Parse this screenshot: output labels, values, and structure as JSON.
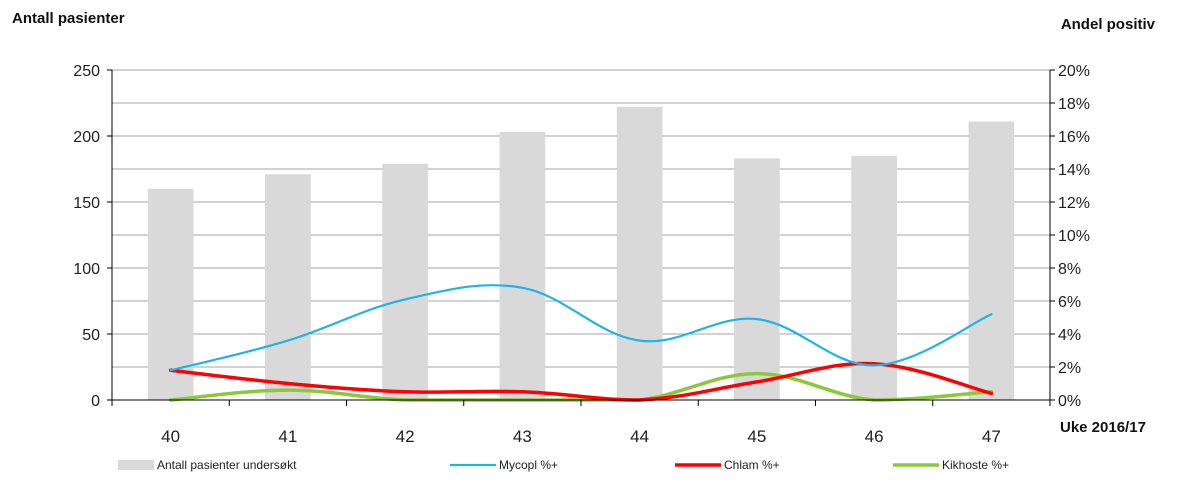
{
  "chart_data": {
    "type": "bar",
    "left_axis_title": "Antall pasienter",
    "right_axis_title": "Andel positiv",
    "x_axis_title": "Uke 2016/17",
    "categories": [
      "40",
      "41",
      "42",
      "43",
      "44",
      "45",
      "46",
      "47"
    ],
    "left_ylim": [
      0,
      250
    ],
    "left_ticks": [
      "0",
      "50",
      "100",
      "150",
      "200",
      "250"
    ],
    "right_ylim": [
      0,
      20
    ],
    "right_ticks": [
      "0%",
      "2%",
      "4%",
      "6%",
      "8%",
      "10%",
      "12%",
      "14%",
      "16%",
      "18%",
      "20%"
    ],
    "grid": true,
    "legend_position": "bottom",
    "bars": {
      "name": "Antall pasienter undersøkt",
      "color": "#d9d9d9",
      "values": [
        160,
        171,
        179,
        203,
        222,
        183,
        185,
        211
      ]
    },
    "lines": [
      {
        "name": "Mycopl %+",
        "color": "#1eb4e6",
        "axis": "right",
        "values": [
          1.8,
          3.6,
          6.1,
          6.8,
          3.6,
          4.9,
          2.1,
          5.2
        ]
      },
      {
        "name": "Chlam %+",
        "color": "#ff0000",
        "axis": "right",
        "values": [
          1.8,
          1.0,
          0.5,
          0.5,
          0.0,
          1.1,
          2.2,
          0.4
        ]
      },
      {
        "name": "Kikhoste %+",
        "color": "#8cc83c",
        "axis": "right",
        "values": [
          0.0,
          0.6,
          0.0,
          0.0,
          0.0,
          1.6,
          0.0,
          0.5
        ]
      }
    ]
  }
}
